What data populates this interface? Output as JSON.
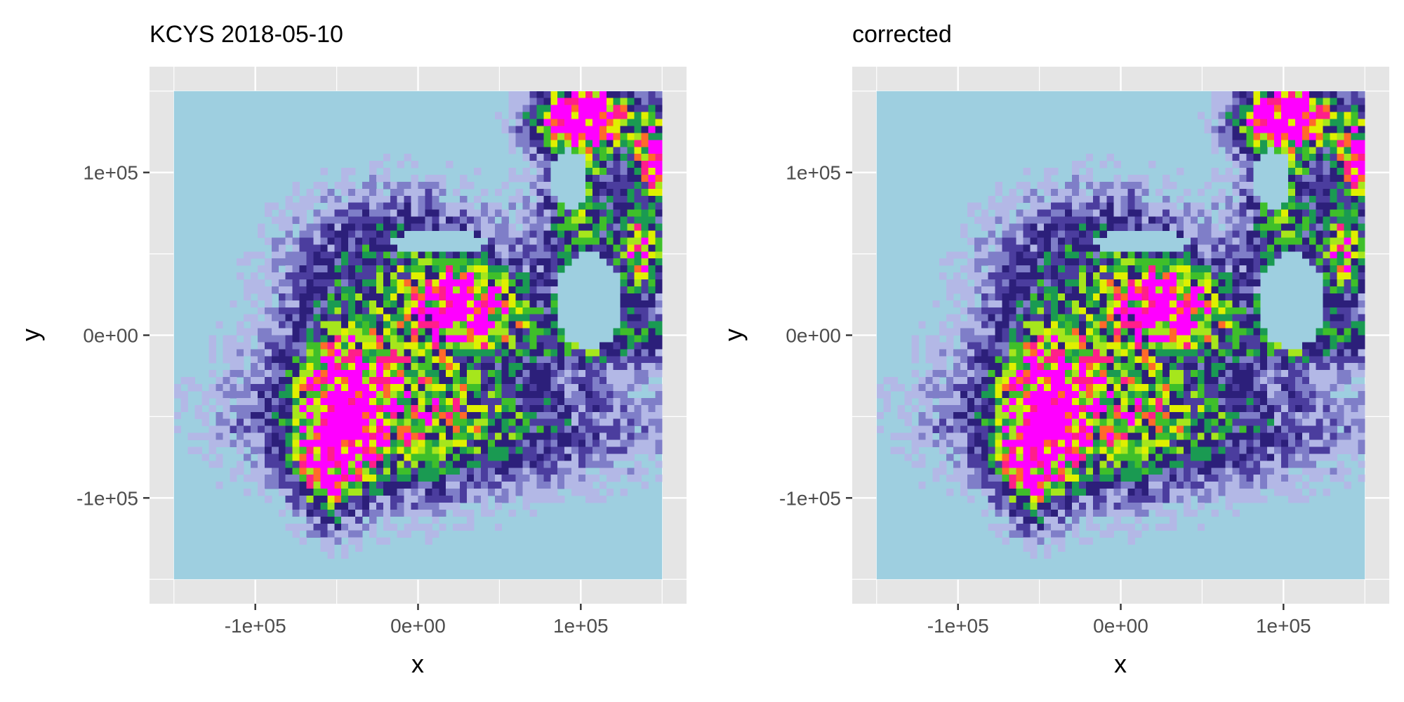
{
  "colors": {
    "panel_background": "#e5e5e5",
    "gridline": "#ffffff",
    "no_data_fill": "#9ecfe0",
    "tick_mark": "#333333",
    "palette": [
      "#9ecfe0",
      "#b3b8e6",
      "#7f7ec8",
      "#4b3d9e",
      "#2c1f7a",
      "#1a9a52",
      "#3fbf2a",
      "#a6e61c",
      "#e0f000",
      "#ff6a2a",
      "#ff1f8a",
      "#ff00ff"
    ]
  },
  "chart_data": [
    {
      "type": "heatmap",
      "title": "KCYS 2018-05-10",
      "xlabel": "x",
      "ylabel": "y",
      "xlim": [
        -165000,
        165000
      ],
      "ylim": [
        -165000,
        165000
      ],
      "raster_extent": {
        "x": [
          -150000,
          150000
        ],
        "y": [
          -150000,
          150000
        ]
      },
      "x_ticks": [
        {
          "value": -100000,
          "label": "-1e+05"
        },
        {
          "value": 0,
          "label": "0e+00"
        },
        {
          "value": 100000,
          "label": "1e+05"
        }
      ],
      "y_ticks": [
        {
          "value": 100000,
          "label": "1e+05"
        },
        {
          "value": 0,
          "label": "0e+00"
        },
        {
          "value": -100000,
          "label": "-1e+05"
        }
      ],
      "minor_grid": [
        -150000,
        -50000,
        50000,
        150000
      ],
      "grid": true,
      "legend": "none"
    },
    {
      "type": "heatmap",
      "title": "corrected",
      "xlabel": "x",
      "ylabel": "y",
      "xlim": [
        -165000,
        165000
      ],
      "ylim": [
        -165000,
        165000
      ],
      "raster_extent": {
        "x": [
          -150000,
          150000
        ],
        "y": [
          -150000,
          150000
        ]
      },
      "x_ticks": [
        {
          "value": -100000,
          "label": "-1e+05"
        },
        {
          "value": 0,
          "label": "0e+00"
        },
        {
          "value": 100000,
          "label": "1e+05"
        }
      ],
      "y_ticks": [
        {
          "value": 100000,
          "label": "1e+05"
        },
        {
          "value": 0,
          "label": "0e+00"
        },
        {
          "value": -100000,
          "label": "-1e+05"
        }
      ],
      "minor_grid": [
        -150000,
        -50000,
        50000,
        150000
      ],
      "grid": true,
      "legend": "none"
    }
  ]
}
